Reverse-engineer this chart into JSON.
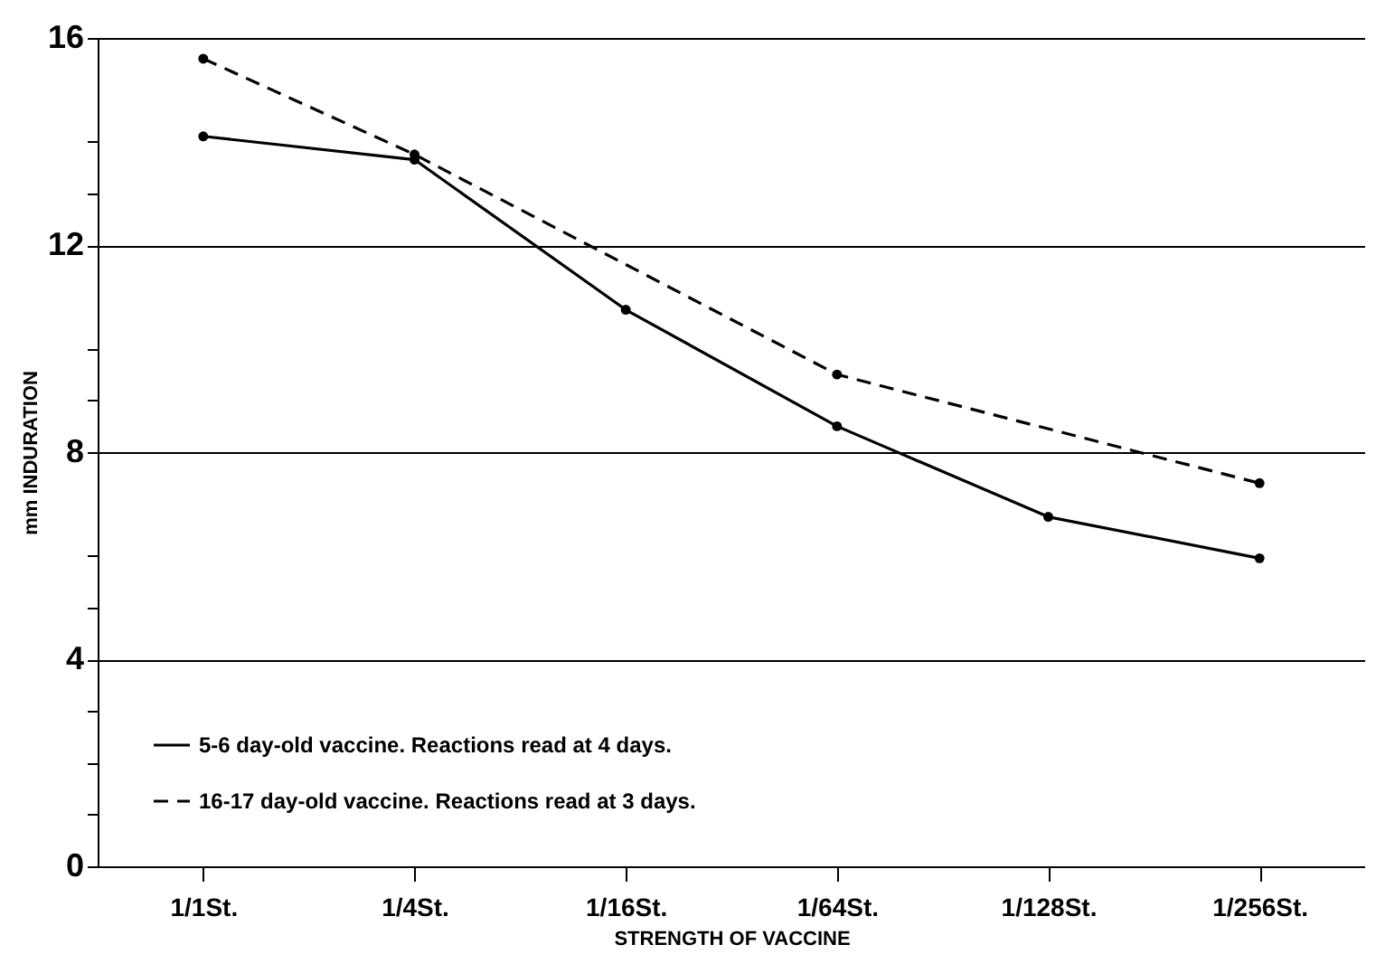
{
  "chart_data": {
    "type": "line",
    "xlabel": "STRENGTH OF VACCINE",
    "ylabel": "mm INDURATION",
    "categories": [
      "1/1St.",
      "1/4St.",
      "1/16St.",
      "1/64St.",
      "1/128St.",
      "1/256St."
    ],
    "ylim": [
      0,
      16
    ],
    "yticks": [
      0,
      {
        "value": 1,
        "label": null
      },
      {
        "value": 2,
        "label": null
      },
      {
        "value": 3,
        "label": null
      },
      4,
      {
        "value": 5,
        "label": null
      },
      {
        "value": 6,
        "label": null
      },
      8,
      {
        "value": 9,
        "label": null
      },
      {
        "value": 10,
        "label": null
      },
      12,
      {
        "value": 13,
        "label": null
      },
      {
        "value": 14,
        "label": null
      },
      16
    ],
    "series": [
      {
        "name": "5-6 day-old vaccine. Reactions read at 4 days.",
        "color": "#000000",
        "line_style": "solid",
        "values": [
          14.1,
          13.65,
          10.75,
          8.5,
          6.75,
          5.95
        ]
      },
      {
        "name": "16-17 day-old vaccine. Reactions read at 3 days.",
        "color": "#000000",
        "line_style": "dashed",
        "values": [
          15.6,
          13.75,
          null,
          9.5,
          null,
          7.4
        ]
      }
    ],
    "grid": "y",
    "legend": "bottom left",
    "marker": "circle"
  }
}
